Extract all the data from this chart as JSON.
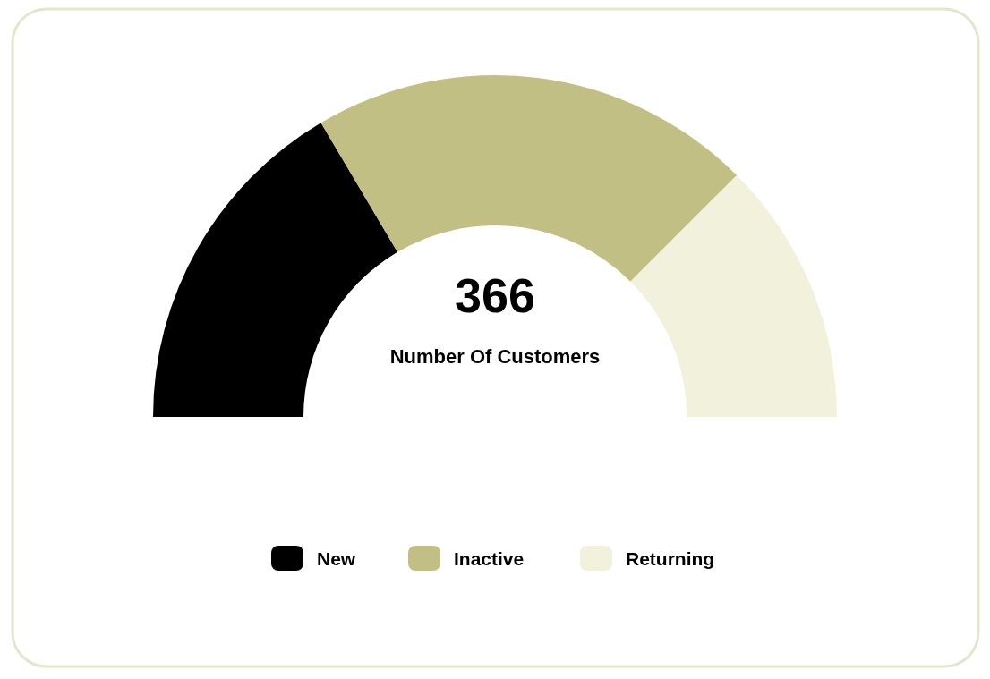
{
  "chart_data": {
    "type": "donut",
    "categories": [
      "New",
      "Inactive",
      "Returning"
    ],
    "values": [
      33,
      42,
      25
    ],
    "colors": [
      "#000000",
      "#c1bf84",
      "#f2f2dc"
    ],
    "annotations": [
      "366",
      "Number Of Customers"
    ],
    "legend": "bottom"
  }
}
